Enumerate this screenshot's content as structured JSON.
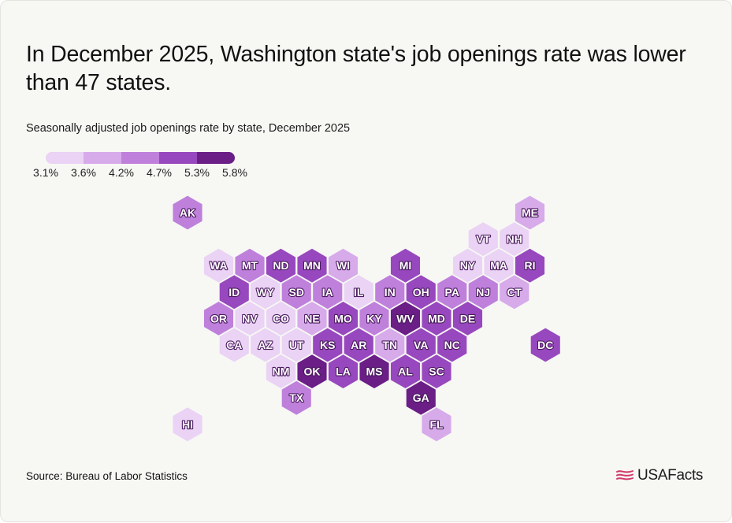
{
  "title": "In December 2025, Washington state's job openings rate was lower than 47 states.",
  "subtitle": "Seasonally adjusted job openings rate by state, December 2025",
  "legend": {
    "colors": [
      "#ead3f4",
      "#d7aaea",
      "#bf80dc",
      "#9848be",
      "#6a1e86"
    ],
    "labels": [
      "3.1%",
      "3.6%",
      "4.2%",
      "4.7%",
      "5.3%",
      "5.8%"
    ]
  },
  "colors": {
    "background": "#f7f7f4",
    "label_outline": "#4a1a5e",
    "logo_flag": "#d23a6a"
  },
  "chart_data": {
    "type": "hex_tile_map",
    "metric": "Seasonally adjusted job openings rate by state",
    "bins": [
      {
        "min": 3.1,
        "max": 3.6
      },
      {
        "min": 3.6,
        "max": 4.2
      },
      {
        "min": 4.2,
        "max": 4.7
      },
      {
        "min": 4.7,
        "max": 5.3
      },
      {
        "min": 5.3,
        "max": 5.8
      }
    ],
    "states": [
      {
        "abbr": "AK",
        "col": 0,
        "row": 0,
        "bin": 2
      },
      {
        "abbr": "ME",
        "col": 11,
        "row": 0,
        "bin": 1
      },
      {
        "abbr": "VT",
        "col": 9.5,
        "row": 1,
        "bin": 0
      },
      {
        "abbr": "NH",
        "col": 10.5,
        "row": 1,
        "bin": 0
      },
      {
        "abbr": "WA",
        "col": 1,
        "row": 2,
        "bin": 0
      },
      {
        "abbr": "MT",
        "col": 2,
        "row": 2,
        "bin": 2
      },
      {
        "abbr": "ND",
        "col": 3,
        "row": 2,
        "bin": 3
      },
      {
        "abbr": "MN",
        "col": 4,
        "row": 2,
        "bin": 3
      },
      {
        "abbr": "WI",
        "col": 5,
        "row": 2,
        "bin": 1
      },
      {
        "abbr": "MI",
        "col": 7,
        "row": 2,
        "bin": 3
      },
      {
        "abbr": "NY",
        "col": 9,
        "row": 2,
        "bin": 0
      },
      {
        "abbr": "MA",
        "col": 10,
        "row": 2,
        "bin": 0
      },
      {
        "abbr": "RI",
        "col": 11,
        "row": 2,
        "bin": 3
      },
      {
        "abbr": "ID",
        "col": 1.5,
        "row": 3,
        "bin": 3
      },
      {
        "abbr": "WY",
        "col": 2.5,
        "row": 3,
        "bin": 0
      },
      {
        "abbr": "SD",
        "col": 3.5,
        "row": 3,
        "bin": 2
      },
      {
        "abbr": "IA",
        "col": 4.5,
        "row": 3,
        "bin": 2
      },
      {
        "abbr": "IL",
        "col": 5.5,
        "row": 3,
        "bin": 0
      },
      {
        "abbr": "IN",
        "col": 6.5,
        "row": 3,
        "bin": 2
      },
      {
        "abbr": "OH",
        "col": 7.5,
        "row": 3,
        "bin": 3
      },
      {
        "abbr": "PA",
        "col": 8.5,
        "row": 3,
        "bin": 2
      },
      {
        "abbr": "NJ",
        "col": 9.5,
        "row": 3,
        "bin": 2
      },
      {
        "abbr": "CT",
        "col": 10.5,
        "row": 3,
        "bin": 1
      },
      {
        "abbr": "OR",
        "col": 1,
        "row": 4,
        "bin": 2
      },
      {
        "abbr": "NV",
        "col": 2,
        "row": 4,
        "bin": 0
      },
      {
        "abbr": "CO",
        "col": 3,
        "row": 4,
        "bin": 0
      },
      {
        "abbr": "NE",
        "col": 4,
        "row": 4,
        "bin": 1
      },
      {
        "abbr": "MO",
        "col": 5,
        "row": 4,
        "bin": 3
      },
      {
        "abbr": "KY",
        "col": 6,
        "row": 4,
        "bin": 2
      },
      {
        "abbr": "WV",
        "col": 7,
        "row": 4,
        "bin": 4
      },
      {
        "abbr": "MD",
        "col": 8,
        "row": 4,
        "bin": 3
      },
      {
        "abbr": "DE",
        "col": 9,
        "row": 4,
        "bin": 3
      },
      {
        "abbr": "CA",
        "col": 1.5,
        "row": 5,
        "bin": 0
      },
      {
        "abbr": "AZ",
        "col": 2.5,
        "row": 5,
        "bin": 0
      },
      {
        "abbr": "UT",
        "col": 3.5,
        "row": 5,
        "bin": 0
      },
      {
        "abbr": "KS",
        "col": 4.5,
        "row": 5,
        "bin": 3
      },
      {
        "abbr": "AR",
        "col": 5.5,
        "row": 5,
        "bin": 3
      },
      {
        "abbr": "TN",
        "col": 6.5,
        "row": 5,
        "bin": 1
      },
      {
        "abbr": "VA",
        "col": 7.5,
        "row": 5,
        "bin": 3
      },
      {
        "abbr": "NC",
        "col": 8.5,
        "row": 5,
        "bin": 3
      },
      {
        "abbr": "DC",
        "col": 11.5,
        "row": 5,
        "bin": 3
      },
      {
        "abbr": "NM",
        "col": 3,
        "row": 6,
        "bin": 0
      },
      {
        "abbr": "OK",
        "col": 4,
        "row": 6,
        "bin": 4
      },
      {
        "abbr": "LA",
        "col": 5,
        "row": 6,
        "bin": 3
      },
      {
        "abbr": "MS",
        "col": 6,
        "row": 6,
        "bin": 4
      },
      {
        "abbr": "AL",
        "col": 7,
        "row": 6,
        "bin": 3
      },
      {
        "abbr": "SC",
        "col": 8,
        "row": 6,
        "bin": 3
      },
      {
        "abbr": "TX",
        "col": 3.5,
        "row": 7,
        "bin": 2
      },
      {
        "abbr": "GA",
        "col": 7.5,
        "row": 7,
        "bin": 4
      },
      {
        "abbr": "HI",
        "col": 0,
        "row": 8,
        "bin": 0
      },
      {
        "abbr": "FL",
        "col": 8,
        "row": 8,
        "bin": 1
      }
    ]
  },
  "source": "Source: Bureau of Labor Statistics",
  "logo": {
    "text": "USAFacts",
    "icon": "usafacts-flag-icon"
  }
}
